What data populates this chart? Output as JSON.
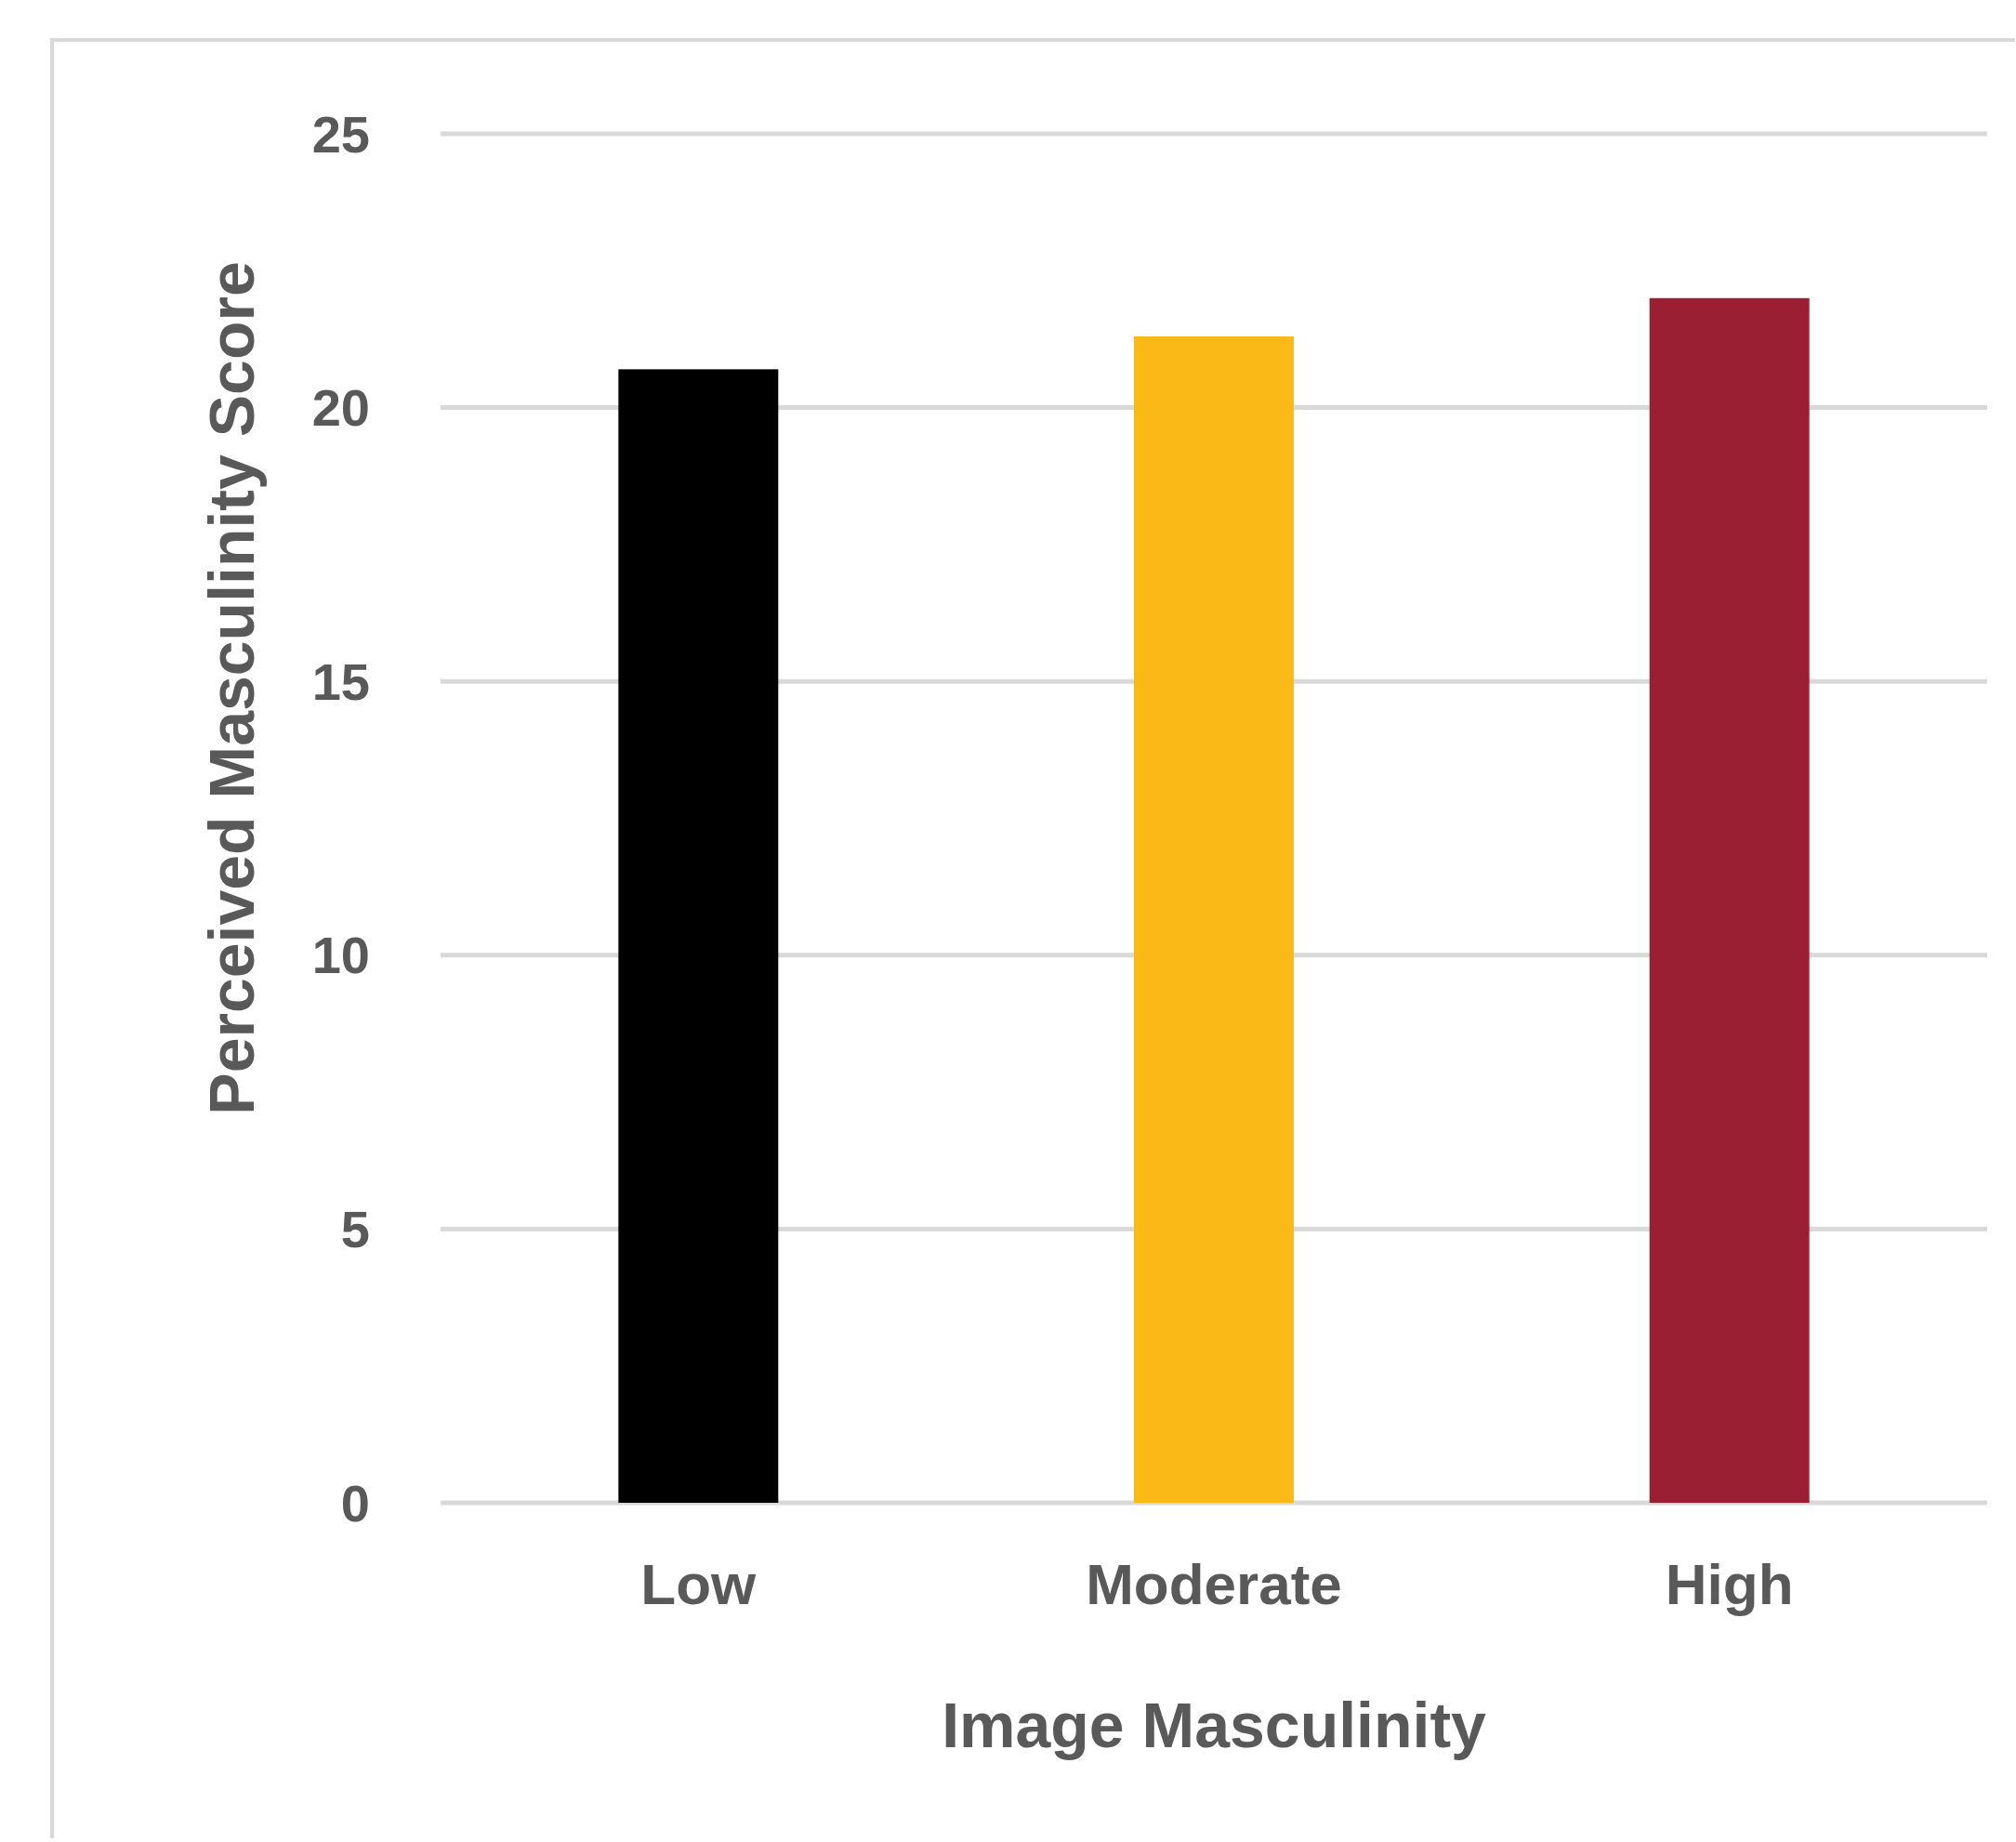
{
  "chart_data": {
    "type": "bar",
    "xlabel": "Image Masculinity",
    "ylabel": "Perceived Masculinity Score",
    "categories": [
      "Low",
      "Moderate",
      "High"
    ],
    "values": [
      20.7,
      21.3,
      22.0
    ],
    "colors": [
      "#000000",
      "#fbb917",
      "#9b1f33"
    ],
    "ylim": [
      0,
      25
    ],
    "yticks": [
      0,
      5,
      10,
      15,
      20,
      25
    ],
    "grid": "y"
  }
}
